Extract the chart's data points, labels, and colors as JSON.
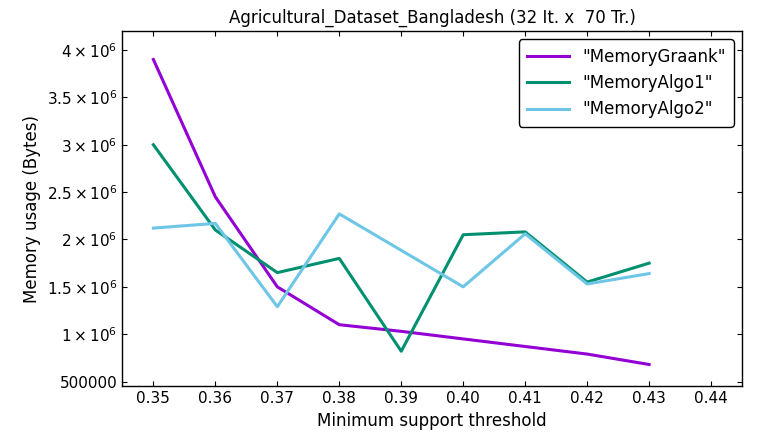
{
  "title": "Agricultural_Dataset_Bangladesh (32 It. x  70 Tr.)",
  "xlabel": "Minimum support threshold",
  "ylabel": "Memory usage (Bytes)",
  "graank_x": [
    0.35,
    0.36,
    0.37,
    0.38,
    0.39,
    0.4,
    0.41,
    0.42,
    0.43
  ],
  "graank_y": [
    3900000,
    2450000,
    1500000,
    1100000,
    1030000,
    950000,
    870000,
    790000,
    680000
  ],
  "algo1_x": [
    0.35,
    0.36,
    0.37,
    0.38,
    0.39,
    0.4,
    0.41,
    0.42,
    0.43
  ],
  "algo1_y": [
    3000000,
    2100000,
    1650000,
    1800000,
    820000,
    2050000,
    2080000,
    1550000,
    1750000
  ],
  "algo2_x": [
    0.35,
    0.36,
    0.37,
    0.38,
    0.4,
    0.41,
    0.42,
    0.43
  ],
  "algo2_y": [
    2120000,
    2170000,
    1290000,
    2270000,
    1500000,
    2060000,
    1530000,
    1640000
  ],
  "color_graank": "#9400D3",
  "color_algo1": "#009070",
  "color_algo2": "#6EC6E6",
  "legend_labels": [
    "\"MemoryGraank\"",
    "\"MemoryAlgo1\"",
    "\"MemoryAlgo2\""
  ],
  "yticks": [
    500000,
    1000000,
    1500000,
    2000000,
    2500000,
    3000000,
    3500000,
    4000000
  ],
  "ytick_labels": [
    "500000",
    "1x10^6",
    "1.5x10^6",
    "2x10^6",
    "2.5x10^6",
    "3x10^6",
    "3.5x10^6",
    "4x10^6"
  ],
  "xticks": [
    0.35,
    0.36,
    0.37,
    0.38,
    0.39,
    0.4,
    0.41,
    0.42,
    0.43,
    0.44
  ],
  "xlim": [
    0.345,
    0.445
  ],
  "ylim": [
    450000,
    4200000
  ]
}
